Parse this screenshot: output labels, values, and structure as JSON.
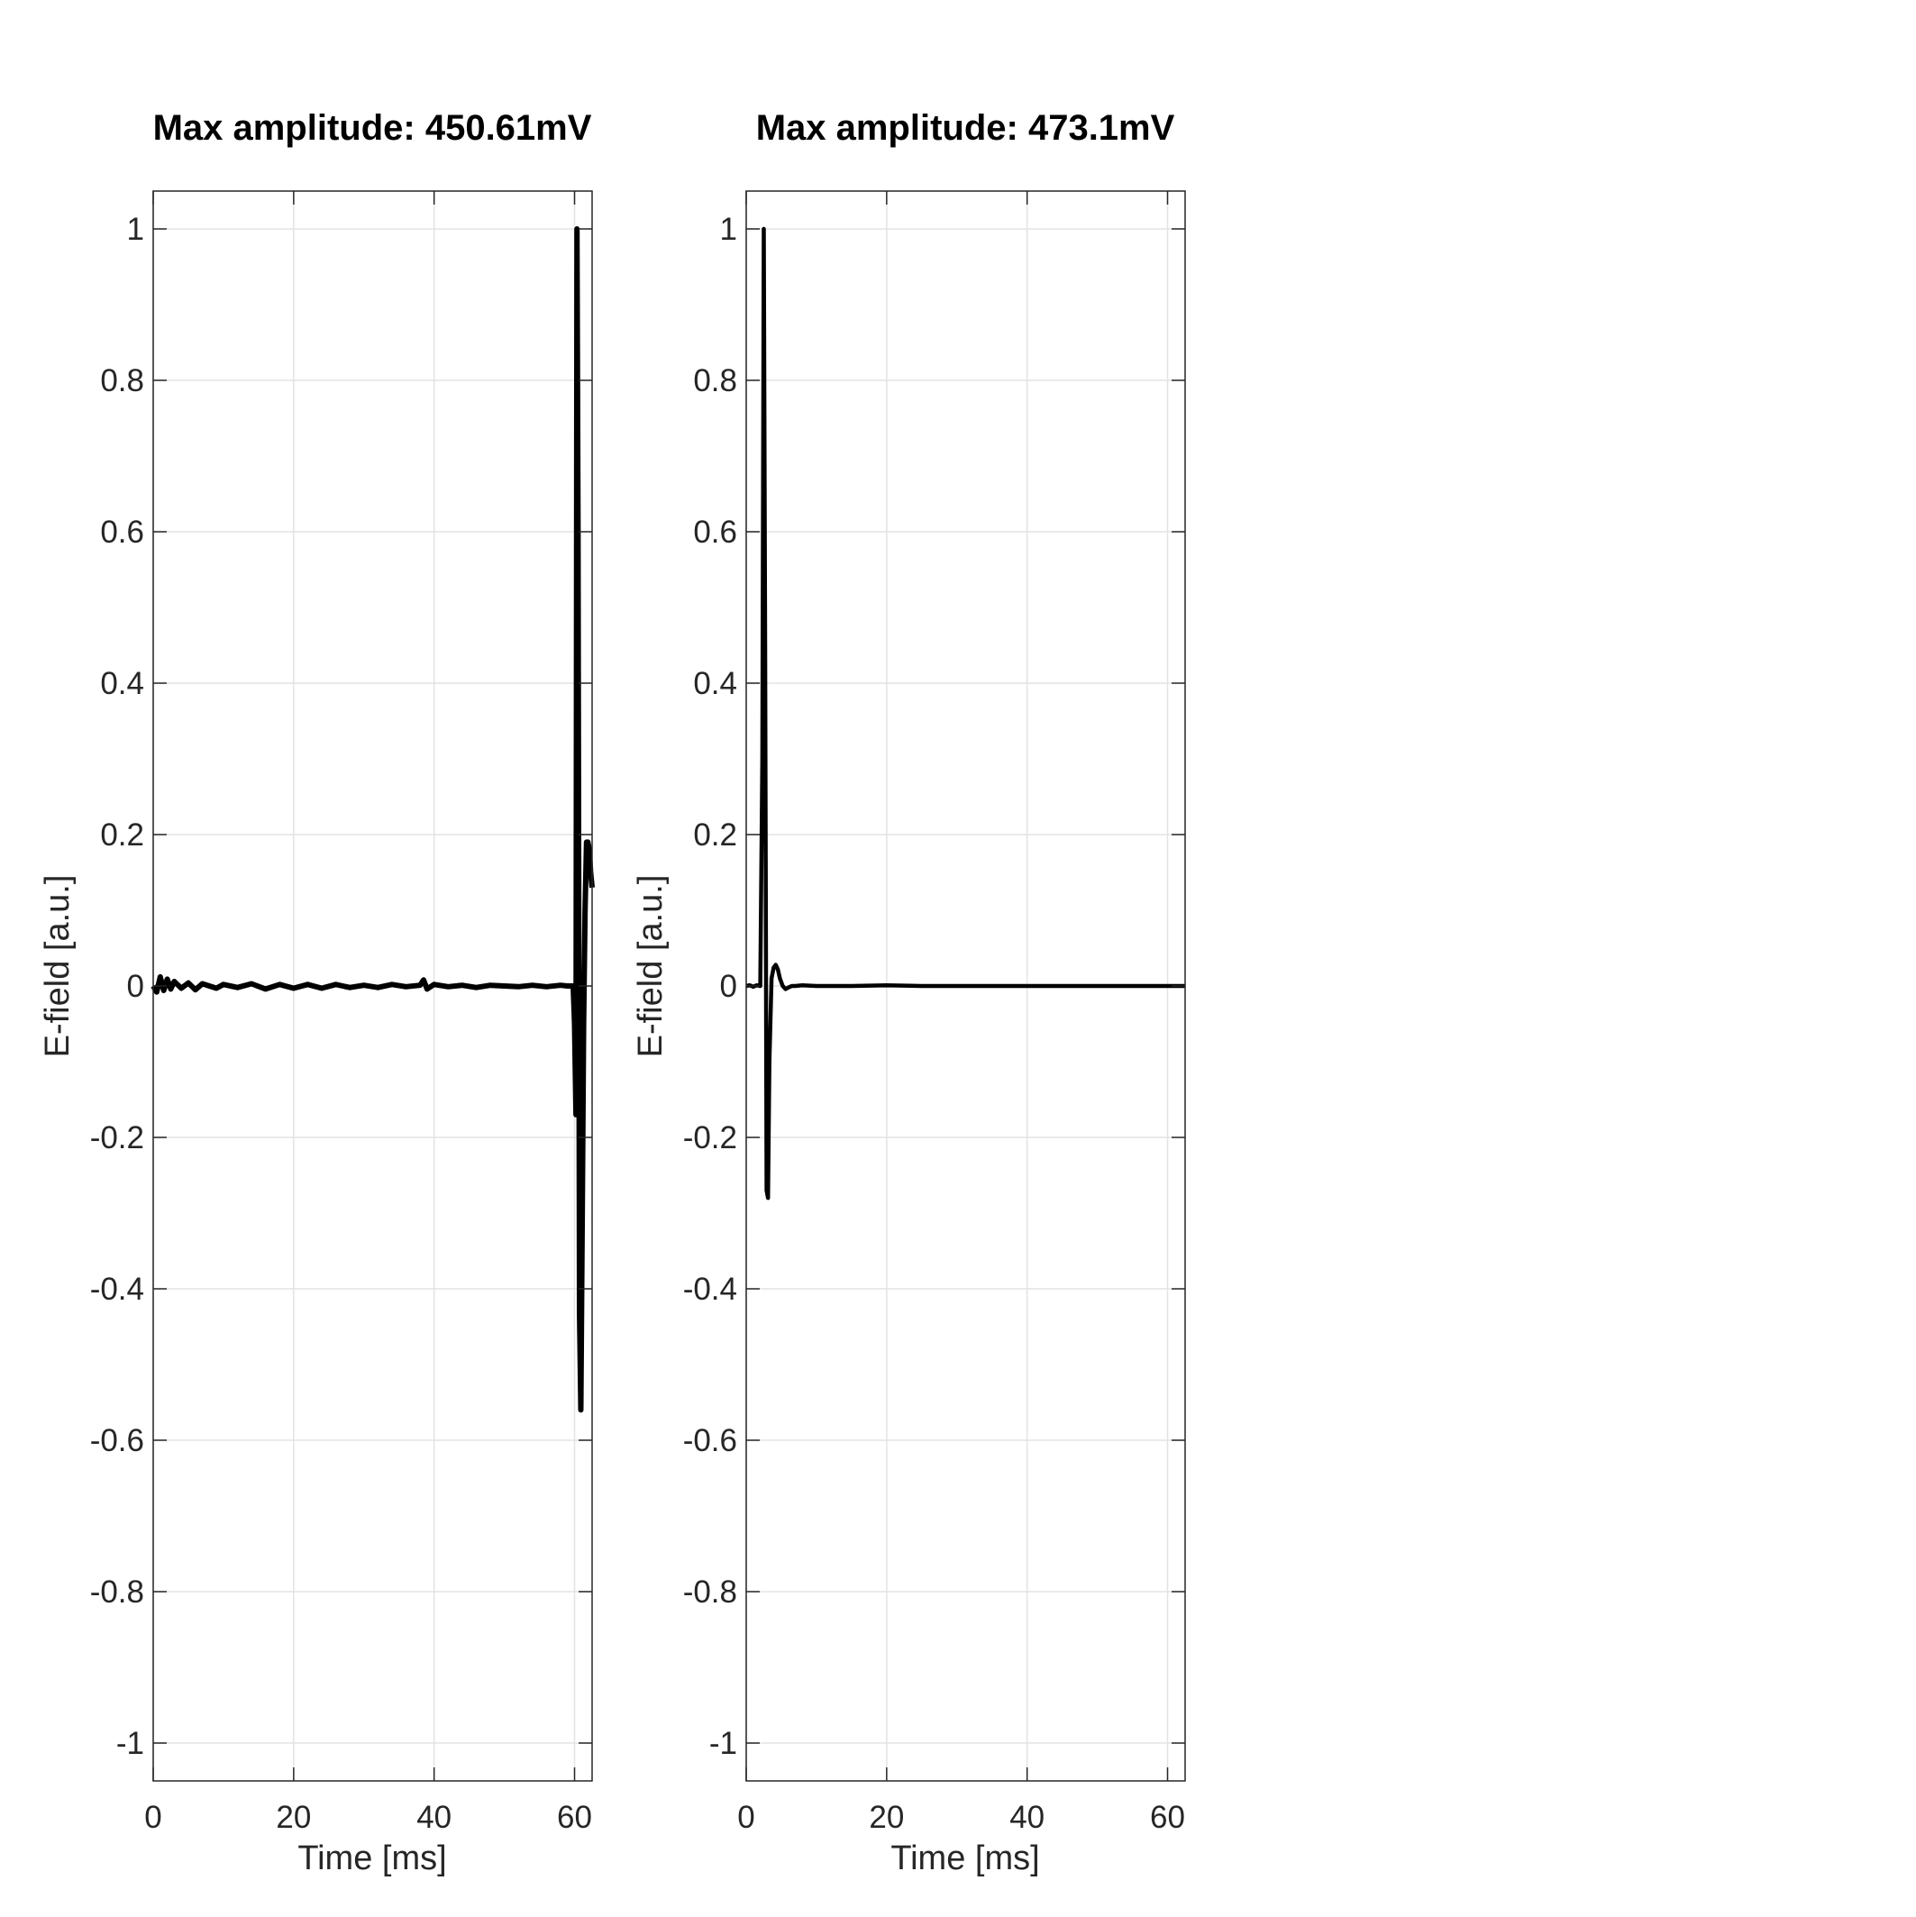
{
  "colors": {
    "background": "#ffffff",
    "trace": "#000000",
    "axis": "#262626",
    "grid": "#e3e3e3"
  },
  "chart_data": [
    {
      "type": "line",
      "title": "Max amplitude: 450.61mV",
      "xlabel": "Time [ms]",
      "ylabel": "E-field [a.u.]",
      "xlim": [
        0,
        62.5
      ],
      "ylim": [
        -1.05,
        1.05
      ],
      "grid": true,
      "legend": "none",
      "xticks": [
        0,
        20,
        40,
        60
      ],
      "xtick_labels": [
        "0",
        "20",
        "40",
        "60"
      ],
      "yticks": [
        1,
        0.8,
        0.6,
        0.4,
        0.2,
        0,
        -0.2,
        -0.4,
        -0.6,
        -0.8,
        -1
      ],
      "ytick_labels": [
        "1",
        "0.8",
        "0.6",
        "0.4",
        "0.2",
        "0",
        "-0.2",
        "-0.4",
        "-0.6",
        "-0.8",
        "-1"
      ],
      "series": [
        {
          "name": "E-field",
          "x": [
            0,
            0.5,
            1,
            1.5,
            2,
            2.5,
            3,
            4,
            5,
            6,
            7,
            8,
            9,
            10,
            12,
            14,
            16,
            18,
            20,
            22,
            24,
            26,
            27,
            28,
            30,
            32,
            34,
            36,
            38,
            38.5,
            39,
            40,
            42,
            44,
            46,
            48,
            50,
            52,
            54,
            56,
            58,
            59,
            59.8,
            60.0,
            60.2,
            60.35,
            60.5,
            60.7,
            60.9,
            61.1,
            61.3,
            61.5,
            61.7,
            61.9,
            62.1,
            62.3,
            62.5
          ],
          "values": [
            0.0,
            -0.008,
            0.012,
            -0.006,
            0.009,
            -0.004,
            0.006,
            -0.003,
            0.004,
            -0.005,
            0.003,
            0.0,
            -0.003,
            0.002,
            -0.002,
            0.003,
            -0.004,
            0.002,
            -0.003,
            0.002,
            -0.003,
            0.002,
            0.0,
            -0.002,
            0.001,
            -0.002,
            0.002,
            -0.001,
            0.001,
            0.008,
            -0.004,
            0.002,
            -0.001,
            0.001,
            -0.002,
            0.001,
            0.0,
            -0.001,
            0.001,
            -0.001,
            0.001,
            0.0,
            0.0,
            -0.05,
            -0.17,
            1.0,
            0.6,
            -0.43,
            -0.56,
            -0.3,
            -0.05,
            0.1,
            0.19,
            0.19,
            0.18,
            0.15,
            0.13
          ]
        }
      ]
    },
    {
      "type": "line",
      "title": "Max amplitude: 473.1mV",
      "xlabel": "Time [ms]",
      "ylabel": "E-field [a.u.]",
      "xlim": [
        0,
        62.5
      ],
      "ylim": [
        -1.05,
        1.05
      ],
      "grid": true,
      "legend": "none",
      "xticks": [
        0,
        20,
        40,
        60
      ],
      "xtick_labels": [
        "0",
        "20",
        "40",
        "60"
      ],
      "yticks": [
        1,
        0.8,
        0.6,
        0.4,
        0.2,
        0,
        -0.2,
        -0.4,
        -0.6,
        -0.8,
        -1
      ],
      "ytick_labels": [
        "1",
        "0.8",
        "0.6",
        "0.4",
        "0.2",
        "0",
        "-0.2",
        "-0.4",
        "-0.6",
        "-0.8",
        "-1"
      ],
      "series": [
        {
          "name": "E-field",
          "x": [
            0,
            0.5,
            1,
            1.5,
            2.0,
            2.3,
            2.5,
            2.7,
            2.9,
            3.1,
            3.3,
            3.6,
            3.9,
            4.2,
            4.5,
            4.8,
            5.2,
            5.6,
            6.0,
            6.5,
            7.0,
            8,
            10,
            15,
            20,
            25,
            30,
            35,
            40,
            45,
            50,
            55,
            60,
            62.5
          ],
          "values": [
            0.0,
            0.001,
            -0.001,
            0.001,
            0.0,
            0.3,
            1.0,
            0.45,
            -0.27,
            -0.28,
            -0.1,
            0.01,
            0.024,
            0.028,
            0.022,
            0.01,
            0.0,
            -0.004,
            -0.002,
            0.0,
            0.0,
            0.001,
            0.0,
            0.0,
            0.001,
            0.0,
            0.0,
            0.0,
            0.0,
            0.0,
            0.0,
            0.0,
            0.0,
            0.0
          ]
        }
      ]
    }
  ]
}
